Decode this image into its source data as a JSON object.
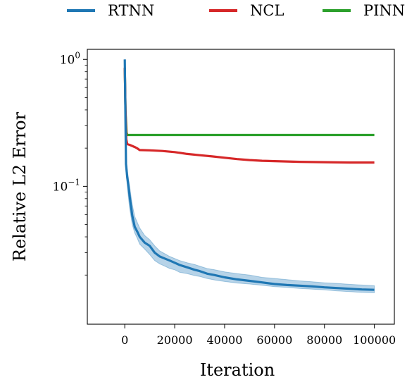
{
  "chart_data": {
    "type": "line",
    "xlabel": "Iteration",
    "ylabel": "Relative L2 Error",
    "xlim": [
      -15000,
      108000
    ],
    "ylim": [
      0.0082,
      1.2
    ],
    "yscale": "log",
    "grid": false,
    "legend_position": "top, outside plot, horizontal",
    "x_ticks": [
      0,
      20000,
      40000,
      60000,
      80000,
      100000
    ],
    "x_tick_labels": [
      "0",
      "20000",
      "40000",
      "60000",
      "80000",
      "100000"
    ],
    "y_ticks": [
      1,
      0.1
    ],
    "y_tick_labels": [
      {
        "base": "10",
        "exp": "0"
      },
      {
        "base": "10",
        "exp": "−1"
      }
    ],
    "series": [
      {
        "name": "RTNN",
        "color": "#1f77b4",
        "band_color": "#9ec4e0",
        "x": [
          0,
          500,
          1000,
          1500,
          2000,
          3000,
          4000,
          5000,
          6000,
          8000,
          10000,
          12000,
          14000,
          16000,
          18000,
          20000,
          22000,
          25000,
          28000,
          30000,
          33000,
          36000,
          40000,
          45000,
          50000,
          55000,
          60000,
          65000,
          70000,
          75000,
          80000,
          85000,
          90000,
          95000,
          100000
        ],
        "y": [
          1.0,
          0.15,
          0.118,
          0.1,
          0.082,
          0.059,
          0.048,
          0.044,
          0.04,
          0.036,
          0.034,
          0.03,
          0.028,
          0.027,
          0.026,
          0.025,
          0.024,
          0.023,
          0.022,
          0.0215,
          0.0205,
          0.02,
          0.0192,
          0.0185,
          0.018,
          0.0175,
          0.017,
          0.0167,
          0.0165,
          0.0163,
          0.016,
          0.0158,
          0.0156,
          0.0154,
          0.0153
        ],
        "band_low": [
          0.95,
          0.13,
          0.1,
          0.08,
          0.066,
          0.05,
          0.043,
          0.039,
          0.035,
          0.032,
          0.029,
          0.026,
          0.0245,
          0.0235,
          0.0225,
          0.022,
          0.021,
          0.0205,
          0.0198,
          0.0195,
          0.0188,
          0.0183,
          0.0178,
          0.0173,
          0.017,
          0.0166,
          0.0162,
          0.016,
          0.0157,
          0.0155,
          0.0153,
          0.015,
          0.0148,
          0.0146,
          0.0145
        ],
        "band_high": [
          1.0,
          0.165,
          0.135,
          0.115,
          0.098,
          0.072,
          0.058,
          0.052,
          0.047,
          0.041,
          0.038,
          0.034,
          0.031,
          0.0295,
          0.028,
          0.027,
          0.026,
          0.025,
          0.0242,
          0.0235,
          0.0225,
          0.022,
          0.0212,
          0.0205,
          0.02,
          0.0192,
          0.0188,
          0.0184,
          0.018,
          0.0177,
          0.0174,
          0.0172,
          0.0169,
          0.0167,
          0.0165
        ]
      },
      {
        "name": "NCL",
        "color": "#d62728",
        "x": [
          0,
          300,
          600,
          1000,
          2000,
          3000,
          4000,
          5000,
          6000,
          10000,
          15000,
          20000,
          25000,
          30000,
          35000,
          40000,
          45000,
          50000,
          55000,
          60000,
          70000,
          80000,
          90000,
          100000
        ],
        "y": [
          0.86,
          0.4,
          0.235,
          0.215,
          0.212,
          0.208,
          0.204,
          0.199,
          0.193,
          0.192,
          0.19,
          0.186,
          0.18,
          0.176,
          0.172,
          0.168,
          0.164,
          0.161,
          0.159,
          0.158,
          0.156,
          0.155,
          0.154,
          0.154
        ]
      },
      {
        "name": "PINN",
        "color": "#2ca02c",
        "x": [
          0,
          300,
          700,
          1000,
          20000,
          40000,
          60000,
          80000,
          100000
        ],
        "y": [
          0.86,
          0.4,
          0.265,
          0.254,
          0.254,
          0.254,
          0.254,
          0.254,
          0.254
        ]
      }
    ]
  }
}
